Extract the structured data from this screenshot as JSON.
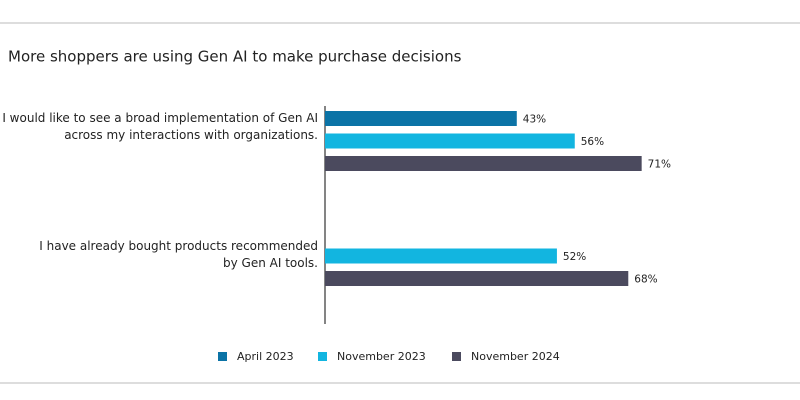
{
  "chart_data": {
    "type": "bar",
    "orientation": "horizontal",
    "title": "More shoppers are using Gen AI to make purchase decisions",
    "categories": [
      [
        "I would like to see a broad implementation of Gen AI",
        "across my interactions with organizations."
      ],
      [
        "I have already bought products recommended",
        "by Gen AI tools."
      ]
    ],
    "series": [
      {
        "name": "April 2023",
        "color": "#0b73a6",
        "values": [
          43,
          null
        ],
        "value_labels": [
          "43%",
          null
        ]
      },
      {
        "name": "November 2023",
        "color": "#12b5e0",
        "values": [
          56,
          52
        ],
        "value_labels": [
          "56%",
          "52%"
        ]
      },
      {
        "name": "November 2024",
        "color": "#4b4a5e",
        "values": [
          71,
          68
        ],
        "value_labels": [
          "71%",
          "68%"
        ]
      }
    ],
    "xlim": [
      0,
      100
    ]
  }
}
